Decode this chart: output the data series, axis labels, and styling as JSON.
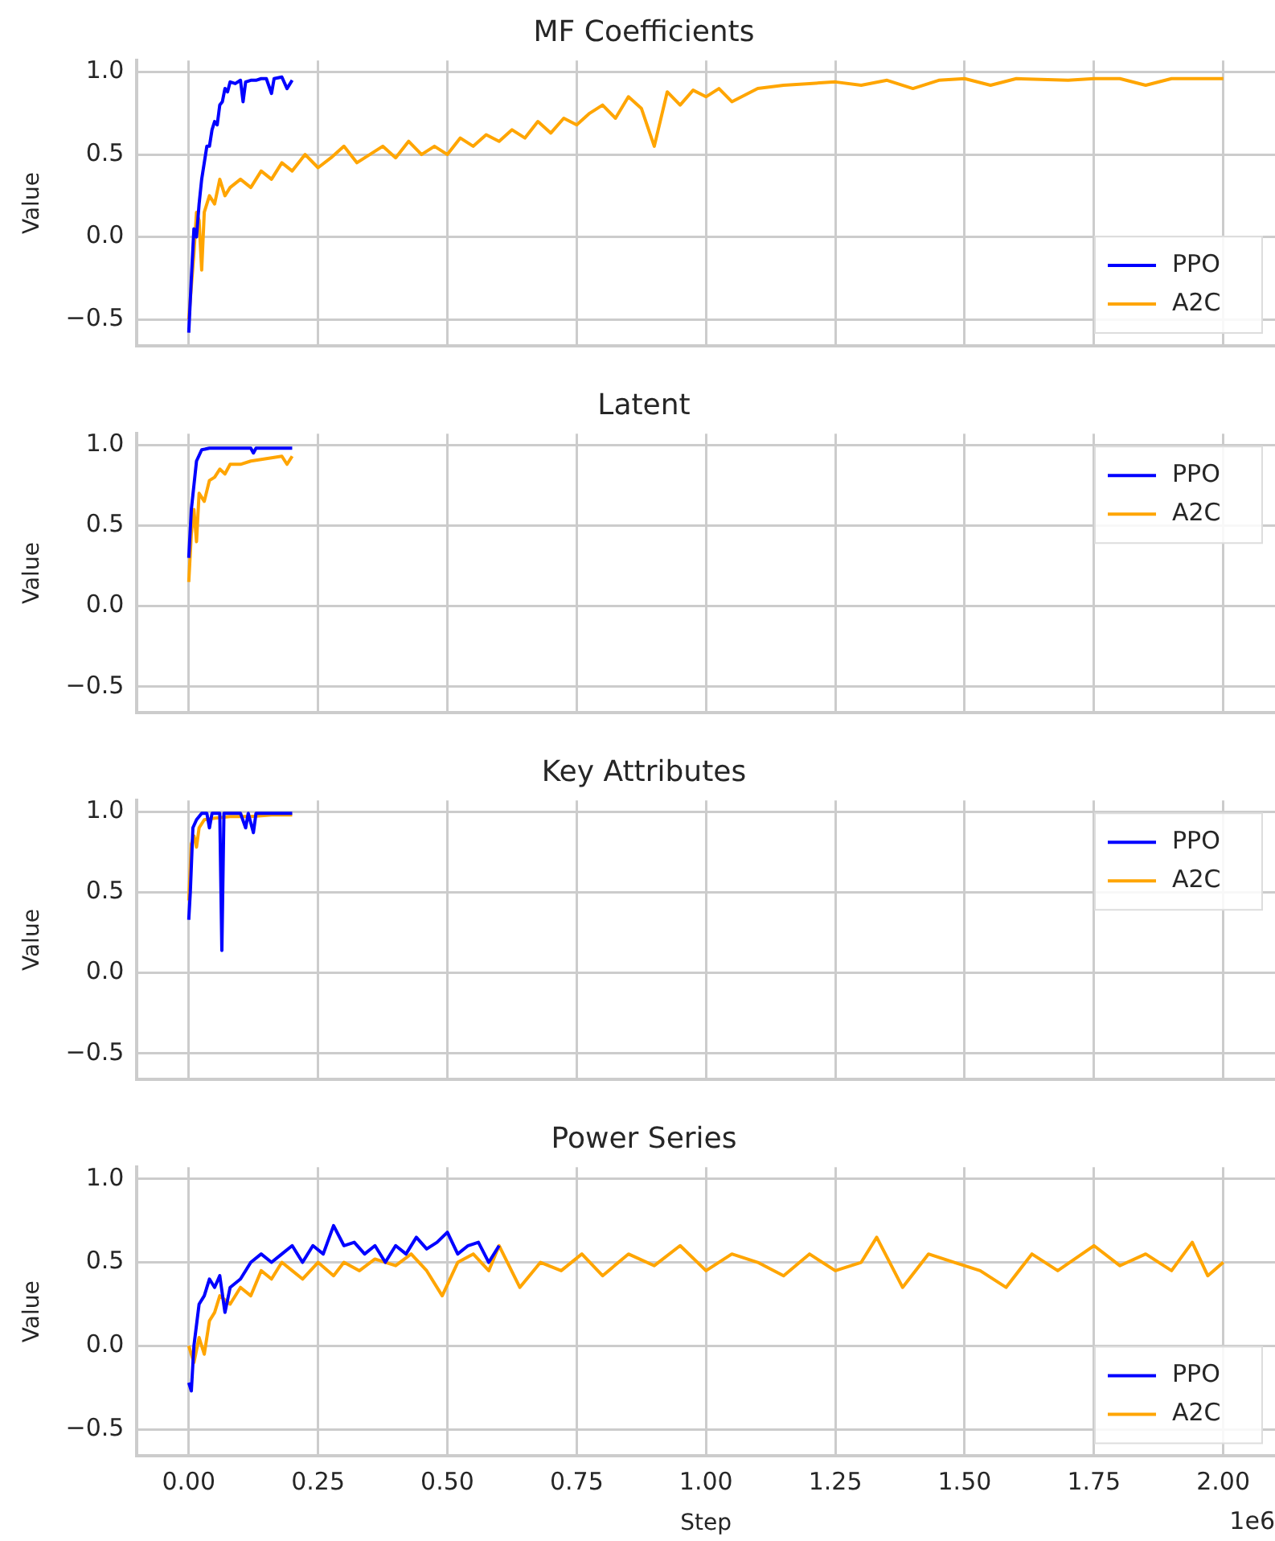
{
  "chart_data": [
    {
      "type": "line",
      "title": "MF Coefficients",
      "ylabel": "Value",
      "xlim": [
        -0.1,
        2.1
      ],
      "ylim": [
        -0.66,
        1.07
      ],
      "xticks": [
        0,
        0.25,
        0.5,
        0.75,
        1,
        1.25,
        1.5,
        1.75,
        2
      ],
      "yticks": [
        {
          "value": -0.5,
          "label": "−0.5"
        },
        {
          "value": 0,
          "label": "0.0"
        },
        {
          "value": 0.5,
          "label": "0.5"
        },
        {
          "value": 1,
          "label": "1.0"
        }
      ],
      "tick_labels": "y",
      "grid": true,
      "legend": "bottom right",
      "series": [
        {
          "name": "PPO",
          "color": "#0000ff",
          "x": [
            0,
            0.005,
            0.01,
            0.015,
            0.02,
            0.025,
            0.03,
            0.035,
            0.04,
            0.045,
            0.05,
            0.055,
            0.06,
            0.065,
            0.07,
            0.075,
            0.08,
            0.09,
            0.1,
            0.105,
            0.11,
            0.12,
            0.13,
            0.14,
            0.15,
            0.16,
            0.165,
            0.18,
            0.19,
            0.2
          ],
          "values": [
            -0.58,
            -0.25,
            0.05,
            0.0,
            0.2,
            0.35,
            0.45,
            0.55,
            0.55,
            0.65,
            0.7,
            0.68,
            0.8,
            0.82,
            0.9,
            0.88,
            0.94,
            0.93,
            0.95,
            0.82,
            0.94,
            0.95,
            0.95,
            0.96,
            0.96,
            0.87,
            0.96,
            0.97,
            0.9,
            0.95
          ]
        },
        {
          "name": "A2C",
          "color": "#ffa500",
          "x": [
            0,
            0.01,
            0.015,
            0.02,
            0.025,
            0.03,
            0.04,
            0.05,
            0.06,
            0.07,
            0.08,
            0.1,
            0.12,
            0.14,
            0.16,
            0.18,
            0.2,
            0.225,
            0.25,
            0.275,
            0.3,
            0.325,
            0.35,
            0.375,
            0.4,
            0.425,
            0.45,
            0.475,
            0.5,
            0.525,
            0.55,
            0.575,
            0.6,
            0.625,
            0.65,
            0.675,
            0.7,
            0.725,
            0.75,
            0.775,
            0.8,
            0.825,
            0.85,
            0.875,
            0.9,
            0.925,
            0.95,
            0.975,
            1,
            1.025,
            1.05,
            1.1,
            1.15,
            1.2,
            1.25,
            1.3,
            1.35,
            1.4,
            1.45,
            1.5,
            1.55,
            1.6,
            1.7,
            1.75,
            1.8,
            1.85,
            1.9,
            2
          ],
          "values": [
            -0.5,
            -0.1,
            0.15,
            0.1,
            -0.2,
            0.15,
            0.25,
            0.2,
            0.35,
            0.25,
            0.3,
            0.35,
            0.3,
            0.4,
            0.35,
            0.45,
            0.4,
            0.5,
            0.42,
            0.48,
            0.55,
            0.45,
            0.5,
            0.55,
            0.48,
            0.58,
            0.5,
            0.55,
            0.5,
            0.6,
            0.55,
            0.62,
            0.58,
            0.65,
            0.6,
            0.7,
            0.63,
            0.72,
            0.68,
            0.75,
            0.8,
            0.72,
            0.85,
            0.78,
            0.55,
            0.88,
            0.8,
            0.89,
            0.85,
            0.9,
            0.82,
            0.9,
            0.92,
            0.93,
            0.94,
            0.92,
            0.95,
            0.9,
            0.95,
            0.96,
            0.92,
            0.96,
            0.95,
            0.96,
            0.96,
            0.92,
            0.96,
            0.96
          ]
        }
      ]
    },
    {
      "type": "line",
      "title": "Latent",
      "ylabel": "Value",
      "xlim": [
        -0.1,
        2.1
      ],
      "ylim": [
        -0.66,
        1.07
      ],
      "xticks": [
        0,
        0.25,
        0.5,
        0.75,
        1,
        1.25,
        1.5,
        1.75,
        2
      ],
      "yticks": [
        {
          "value": -0.5,
          "label": "−0.5"
        },
        {
          "value": 0,
          "label": "0.0"
        },
        {
          "value": 0.5,
          "label": "0.5"
        },
        {
          "value": 1,
          "label": "1.0"
        }
      ],
      "tick_labels": "y",
      "grid": true,
      "legend": "top right",
      "series": [
        {
          "name": "PPO",
          "color": "#0000ff",
          "x": [
            0,
            0.005,
            0.01,
            0.015,
            0.025,
            0.04,
            0.06,
            0.08,
            0.1,
            0.12,
            0.125,
            0.13,
            0.16,
            0.2
          ],
          "values": [
            0.3,
            0.6,
            0.75,
            0.9,
            0.97,
            0.98,
            0.98,
            0.98,
            0.98,
            0.98,
            0.95,
            0.98,
            0.98,
            0.98
          ]
        },
        {
          "name": "A2C",
          "color": "#ffa500",
          "x": [
            0,
            0.005,
            0.01,
            0.015,
            0.02,
            0.03,
            0.04,
            0.05,
            0.06,
            0.07,
            0.08,
            0.1,
            0.12,
            0.14,
            0.16,
            0.18,
            0.19,
            0.2
          ],
          "values": [
            0.15,
            0.45,
            0.6,
            0.4,
            0.7,
            0.65,
            0.78,
            0.8,
            0.85,
            0.82,
            0.88,
            0.88,
            0.9,
            0.91,
            0.92,
            0.93,
            0.88,
            0.93
          ]
        }
      ]
    },
    {
      "type": "line",
      "title": "Key Attributes",
      "ylabel": "Value",
      "xlim": [
        -0.1,
        2.1
      ],
      "ylim": [
        -0.66,
        1.07
      ],
      "xticks": [
        0,
        0.25,
        0.5,
        0.75,
        1,
        1.25,
        1.5,
        1.75,
        2
      ],
      "yticks": [
        {
          "value": -0.5,
          "label": "−0.5"
        },
        {
          "value": 0,
          "label": "0.0"
        },
        {
          "value": 0.5,
          "label": "0.5"
        },
        {
          "value": 1,
          "label": "1.0"
        }
      ],
      "tick_labels": "y",
      "grid": true,
      "legend": "top right",
      "series": [
        {
          "name": "PPO",
          "color": "#0000ff",
          "x": [
            0,
            0.003,
            0.008,
            0.015,
            0.025,
            0.035,
            0.04,
            0.045,
            0.06,
            0.064,
            0.068,
            0.1,
            0.11,
            0.115,
            0.125,
            0.13,
            0.2
          ],
          "values": [
            0.33,
            0.5,
            0.9,
            0.95,
            0.99,
            0.99,
            0.9,
            0.99,
            0.99,
            0.14,
            0.99,
            0.99,
            0.9,
            0.99,
            0.87,
            0.99,
            0.99
          ]
        },
        {
          "name": "A2C",
          "color": "#ffa500",
          "x": [
            0,
            0.005,
            0.01,
            0.015,
            0.02,
            0.03,
            0.05,
            0.08,
            0.12,
            0.16,
            0.2
          ],
          "values": [
            0.45,
            0.8,
            0.85,
            0.78,
            0.9,
            0.95,
            0.96,
            0.97,
            0.97,
            0.98,
            0.98
          ]
        }
      ]
    },
    {
      "type": "line",
      "title": "Power Series",
      "xlabel": "Step",
      "ylabel": "Value",
      "xlim": [
        -0.1,
        2.1
      ],
      "ylim": [
        -0.66,
        1.07
      ],
      "xticks": [
        {
          "value": 0,
          "label": "0.00"
        },
        0.25,
        {
          "value": 0.5,
          "label": "0.50"
        },
        0.75,
        {
          "value": 1,
          "label": "1.00"
        },
        1.25,
        {
          "value": 1.5,
          "label": "1.50"
        },
        1.75,
        {
          "value": 2,
          "label": "2.00"
        }
      ],
      "yticks": [
        {
          "value": -0.5,
          "label": "−0.5"
        },
        {
          "value": 0,
          "label": "0.0"
        },
        {
          "value": 0.5,
          "label": "0.5"
        },
        {
          "value": 1,
          "label": "1.0"
        }
      ],
      "grid": true,
      "legend": "bottom right",
      "annotations": [
        "1e6"
      ],
      "series": [
        {
          "name": "PPO",
          "color": "#0000ff",
          "x": [
            0,
            0.005,
            0.01,
            0.02,
            0.03,
            0.04,
            0.05,
            0.06,
            0.07,
            0.08,
            0.1,
            0.12,
            0.14,
            0.16,
            0.18,
            0.2,
            0.22,
            0.24,
            0.26,
            0.28,
            0.3,
            0.32,
            0.34,
            0.36,
            0.38,
            0.4,
            0.42,
            0.44,
            0.46,
            0.48,
            0.5,
            0.52,
            0.54,
            0.56,
            0.58,
            0.6
          ],
          "values": [
            -0.22,
            -0.27,
            0.0,
            0.25,
            0.3,
            0.4,
            0.35,
            0.42,
            0.2,
            0.35,
            0.4,
            0.5,
            0.55,
            0.5,
            0.55,
            0.6,
            0.5,
            0.6,
            0.55,
            0.72,
            0.6,
            0.62,
            0.55,
            0.6,
            0.5,
            0.6,
            0.55,
            0.65,
            0.58,
            0.62,
            0.68,
            0.55,
            0.6,
            0.62,
            0.5,
            0.6
          ]
        },
        {
          "name": "A2C",
          "color": "#ffa500",
          "x": [
            0,
            0.01,
            0.02,
            0.03,
            0.04,
            0.05,
            0.06,
            0.08,
            0.1,
            0.12,
            0.14,
            0.16,
            0.18,
            0.2,
            0.22,
            0.25,
            0.28,
            0.3,
            0.33,
            0.36,
            0.4,
            0.43,
            0.46,
            0.49,
            0.52,
            0.55,
            0.58,
            0.6,
            0.64,
            0.68,
            0.72,
            0.76,
            0.8,
            0.85,
            0.9,
            0.95,
            1,
            1.05,
            1.1,
            1.15,
            1.2,
            1.25,
            1.3,
            1.33,
            1.38,
            1.43,
            1.48,
            1.53,
            1.58,
            1.63,
            1.68,
            1.75,
            1.8,
            1.85,
            1.9,
            1.94,
            1.97,
            2
          ],
          "values": [
            0.0,
            -0.1,
            0.05,
            -0.05,
            0.15,
            0.2,
            0.3,
            0.25,
            0.35,
            0.3,
            0.45,
            0.4,
            0.5,
            0.45,
            0.4,
            0.5,
            0.42,
            0.5,
            0.45,
            0.52,
            0.48,
            0.55,
            0.45,
            0.3,
            0.5,
            0.55,
            0.45,
            0.6,
            0.35,
            0.5,
            0.45,
            0.55,
            0.42,
            0.55,
            0.48,
            0.6,
            0.45,
            0.55,
            0.5,
            0.42,
            0.55,
            0.45,
            0.5,
            0.65,
            0.35,
            0.55,
            0.5,
            0.45,
            0.35,
            0.55,
            0.45,
            0.6,
            0.48,
            0.55,
            0.45,
            0.62,
            0.42,
            0.5
          ]
        }
      ]
    }
  ]
}
